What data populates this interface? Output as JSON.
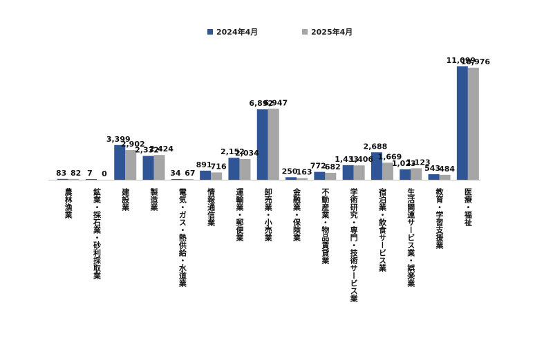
{
  "chart_data": {
    "type": "bar",
    "categories": [
      "農林漁業",
      "鉱業・採石業・砂利採取業",
      "建設業",
      "製造業",
      "電気・ガス・熱供給・水道業",
      "情報通信業",
      "運輸業・郵便業",
      "卸売業・小売業",
      "金融業・保険業",
      "不動産業・物品賃貸業",
      "学術研究・専門・技術サービス業",
      "宿泊業・飲食サービス業",
      "生活関連サービス業・娯楽業",
      "教育・学習支援業",
      "医療・福祉"
    ],
    "series": [
      {
        "name": "2024年4月",
        "color": "#2F5597",
        "values": [
          83,
          7,
          3399,
          2332,
          34,
          891,
          2152,
          6892,
          250,
          772,
          1433,
          2688,
          1023,
          543,
          11099
        ],
        "labels": [
          "83",
          "7",
          "3,399",
          "2,332",
          "34",
          "891",
          "2,152",
          "6,892",
          "250",
          "772",
          "1,433",
          "2,688",
          "1,023",
          "543",
          "11,099"
        ]
      },
      {
        "name": "2025年4月",
        "color": "#A6A6A6",
        "values": [
          82,
          0,
          2902,
          2424,
          67,
          716,
          2034,
          6947,
          163,
          682,
          1406,
          1669,
          1123,
          484,
          10976
        ],
        "labels": [
          "82",
          "0",
          "2,902",
          "2,424",
          "67",
          "716",
          "2,034",
          "6,947",
          "163",
          "682",
          "1,406",
          "1,669",
          "1,123",
          "484",
          "10,976"
        ]
      }
    ],
    "ylim": [
      0,
      11500
    ],
    "grid": false,
    "legend_position": "top"
  }
}
